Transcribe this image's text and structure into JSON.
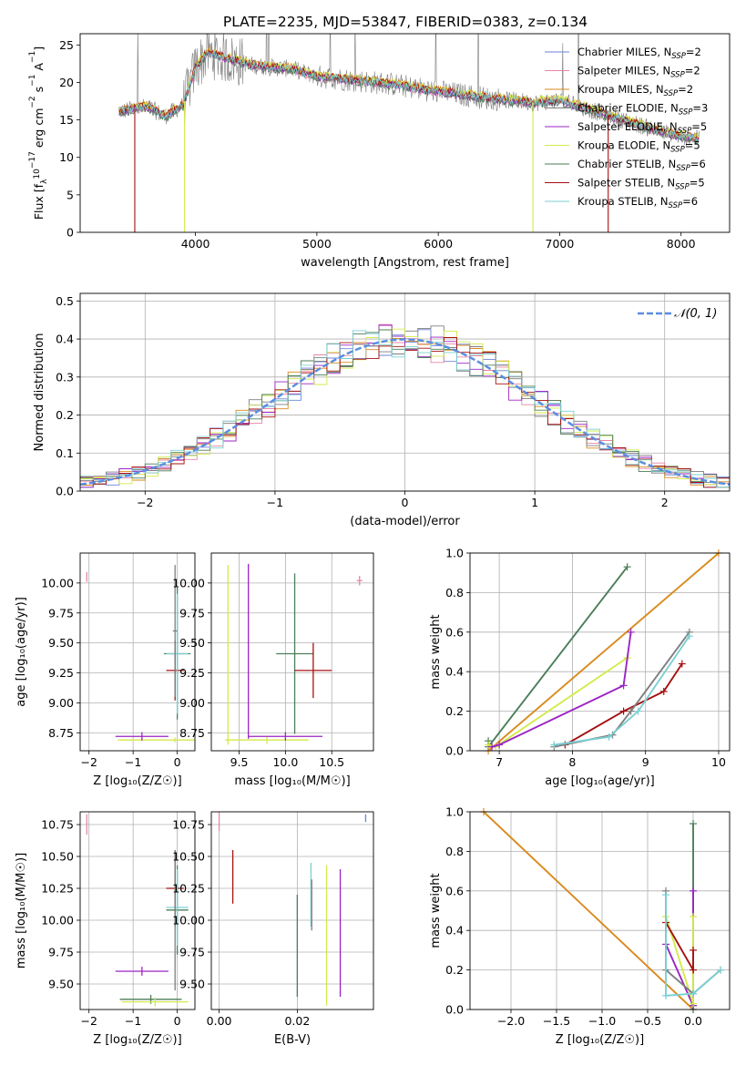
{
  "figure": {
    "title": "PLATE=2235, MJD=53847, FIBERID=0383, z=0.134"
  },
  "colors": {
    "chabrier_miles": "#6a84d8",
    "salpeter_miles": "#e886a6",
    "kroupa_miles": "#d98a1e",
    "chabrier_elodie": "#7e7e7e",
    "salpeter_elodie": "#9b25c4",
    "kroupa_elodie": "#d4ea4a",
    "chabrier_stelib": "#4b7e5a",
    "salpeter_stelib": "#a51010",
    "kroupa_stelib": "#7ccfd2",
    "orange": "#d97a30",
    "normal": "#5b8ee0"
  },
  "chart_data": [
    {
      "id": "spectrum",
      "type": "line",
      "xlabel": "wavelength [Angstrom, rest frame]",
      "ylabel": "Flux [f_λ10^-17 erg cm^-2 s^-1 A^-1]",
      "xlim": [
        3050,
        8400
      ],
      "ylim": [
        0,
        26.5
      ],
      "xticks": [
        "4000",
        "5000",
        "6000",
        "7000",
        "8000"
      ],
      "yticks": [
        "0",
        "5",
        "10",
        "15",
        "20",
        "25"
      ],
      "grid": false,
      "legend_position": "right",
      "legend": [
        {
          "label": "Chabrier MILES, N",
          "sub": "SSP",
          "eq": "=2"
        },
        {
          "label": "Salpeter MILES, N",
          "sub": "SSP",
          "eq": "=2"
        },
        {
          "label": "Kroupa MILES, N",
          "sub": "SSP",
          "eq": "=2"
        },
        {
          "label": "Chabrier ELODIE, N",
          "sub": "SSP",
          "eq": "=3"
        },
        {
          "label": "Salpeter ELODIE, N",
          "sub": "SSP",
          "eq": "=5"
        },
        {
          "label": "Kroupa ELODIE, N",
          "sub": "SSP",
          "eq": "=5"
        },
        {
          "label": "Chabrier STELIB, N",
          "sub": "SSP",
          "eq": "=6"
        },
        {
          "label": "Salpeter STELIB, N",
          "sub": "SSP",
          "eq": "=5"
        },
        {
          "label": "Kroupa STELIB, N",
          "sub": "SSP",
          "eq": "=6"
        }
      ],
      "continuum_model": {
        "x": [
          3400,
          3600,
          3750,
          3900,
          4000,
          4100,
          4300,
          4500,
          4800,
          5000,
          5300,
          5600,
          6000,
          6400,
          6800,
          7000,
          7200,
          7500,
          7800,
          8000,
          8200
        ],
        "y": [
          16.2,
          16.8,
          15.5,
          17.0,
          22.0,
          24.0,
          23.0,
          22.2,
          21.8,
          20.8,
          20.3,
          19.8,
          18.8,
          17.9,
          17.3,
          17.6,
          16.6,
          15.1,
          13.6,
          12.8,
          12.4
        ]
      }
    },
    {
      "id": "residuals",
      "type": "line",
      "xlabel": "(data-model)/error",
      "ylabel": "Normed distribution",
      "xlim": [
        -2.5,
        2.5
      ],
      "ylim": [
        0,
        0.52
      ],
      "xticks": [
        "−2",
        "−1",
        "0",
        "1",
        "2"
      ],
      "yticks": [
        "0.0",
        "0.1",
        "0.2",
        "0.3",
        "0.4",
        "0.5"
      ],
      "grid": true,
      "legend_position": "top-right",
      "legend": [
        "𝒩(0, 1)"
      ],
      "bin_width": 0.1
    },
    {
      "id": "age_vs_Z",
      "type": "scatter",
      "xlabel": "Z [log₁₀(Z/Z☉)]",
      "ylabel": "age [log₁₀(age/yr)]",
      "xlim": [
        -2.2,
        0.4
      ],
      "ylim": [
        8.6,
        10.25
      ],
      "xticks": [
        "−2",
        "−1",
        "0"
      ],
      "yticks": [
        "8.75",
        "9.00",
        "9.25",
        "9.50",
        "9.75",
        "10.00"
      ],
      "grid": true,
      "errorbars": [
        {
          "series": "salpeter_miles",
          "x": -2.05,
          "xerr": 0.0,
          "y": 10.05,
          "yerr": 0.04
        },
        {
          "series": "salpeter_stelib",
          "x": -0.05,
          "xerr": 0.2,
          "y": 9.27,
          "yerr": 0.25
        },
        {
          "series": "chabrier_stelib",
          "x": 0.0,
          "xerr": 0.3,
          "y": 9.41,
          "yerr": 0.55
        },
        {
          "series": "kroupa_stelib",
          "x": 0.0,
          "xerr": 0.25,
          "y": 9.41,
          "yerr": 0.5
        },
        {
          "series": "kroupa_elodie",
          "x": -0.05,
          "xerr": 1.3,
          "y": 8.69,
          "yerr": 0.02
        },
        {
          "series": "salpeter_elodie",
          "x": -0.8,
          "xerr": 0.6,
          "y": 8.72,
          "yerr": 0.0
        },
        {
          "series": "chabrier_elodie",
          "x": -0.05,
          "xerr": 0.05,
          "y": 9.6,
          "yerr": 0.55
        }
      ]
    },
    {
      "id": "age_vs_mass",
      "type": "scatter",
      "xlabel": "mass [log₁₀(M/M☉)]",
      "ylabel": "",
      "xlim": [
        9.2,
        10.95
      ],
      "ylim": [
        8.6,
        10.25
      ],
      "xticks": [
        "9.5",
        "10.0",
        "10.5"
      ],
      "yticks": [
        "8.75",
        "9.00",
        "9.25",
        "9.50",
        "9.75",
        "10.00"
      ],
      "grid": true,
      "errorbars": [
        {
          "series": "salpeter_miles",
          "x": 10.8,
          "xerr": 0.03,
          "y": 10.02,
          "yerr": 0.04
        },
        {
          "series": "kroupa_elodie",
          "x": 9.38,
          "xerr": 0.0,
          "y": 9.4,
          "yerr": 0.75
        },
        {
          "series": "salpeter_elodie",
          "x": 9.6,
          "xerr": 0.0,
          "y": 9.43,
          "yerr": 0.73
        },
        {
          "series": "kroupa_elodie",
          "x": 9.8,
          "xerr": 0.45,
          "y": 8.69,
          "yerr": 0.0
        },
        {
          "series": "salpeter_elodie",
          "x": 10.0,
          "xerr": 0.4,
          "y": 8.72,
          "yerr": 0.0
        },
        {
          "series": "chabrier_stelib",
          "x": 10.1,
          "xerr": 0.2,
          "y": 9.41,
          "yerr": 0.67
        },
        {
          "series": "salpeter_stelib",
          "x": 10.3,
          "xerr": 0.2,
          "y": 9.27,
          "yerr": 0.23
        }
      ]
    },
    {
      "id": "massweight_vs_age",
      "type": "line",
      "xlabel": "age [log₁₀(age/yr)]",
      "ylabel": "mass weight",
      "xlim": [
        6.6,
        10.15
      ],
      "ylim": [
        0,
        1.0
      ],
      "xticks": [
        "7",
        "8",
        "9",
        "10"
      ],
      "yticks": [
        "0.0",
        "0.2",
        "0.4",
        "0.6",
        "0.8",
        "1.0"
      ],
      "grid": true,
      "series": [
        {
          "name": "chabrier_stelib",
          "x": [
            6.85,
            6.85,
            8.75
          ],
          "y": [
            0.05,
            0.02,
            0.93
          ]
        },
        {
          "name": "kroupa_miles",
          "x": [
            6.85,
            10.0
          ],
          "y": [
            0.0,
            1.0
          ]
        },
        {
          "name": "kroupa_elodie",
          "x": [
            6.85,
            6.95,
            8.75,
            8.75
          ],
          "y": [
            0.03,
            0.02,
            0.47,
            0.47
          ]
        },
        {
          "name": "salpeter_elodie",
          "x": [
            6.9,
            7.0,
            8.7,
            8.8
          ],
          "y": [
            0.02,
            0.03,
            0.33,
            0.6
          ]
        },
        {
          "name": "salpeter_stelib",
          "x": [
            7.9,
            8.7,
            9.25,
            9.5
          ],
          "y": [
            0.03,
            0.2,
            0.3,
            0.44
          ]
        },
        {
          "name": "chabrier_elodie",
          "x": [
            7.75,
            8.55,
            8.8,
            9.6
          ],
          "y": [
            0.02,
            0.08,
            0.2,
            0.6
          ]
        },
        {
          "name": "kroupa_stelib",
          "x": [
            7.75,
            8.5,
            8.9,
            9.6
          ],
          "y": [
            0.03,
            0.07,
            0.2,
            0.58
          ]
        }
      ]
    },
    {
      "id": "mass_vs_Z",
      "type": "scatter",
      "xlabel": "Z [log₁₀(Z/Z☉)]",
      "ylabel": "mass [log₁₀(M/M☉)]",
      "xlim": [
        -2.2,
        0.4
      ],
      "ylim": [
        9.3,
        10.85
      ],
      "xticks": [
        "−2",
        "−1",
        "0"
      ],
      "yticks": [
        "9.50",
        "9.75",
        "10.00",
        "10.25",
        "10.50",
        "10.75"
      ],
      "grid": true,
      "errorbars": [
        {
          "series": "salpeter_miles",
          "x": -2.05,
          "xerr": 0.0,
          "y": 10.75,
          "yerr": 0.08
        },
        {
          "series": "salpeter_stelib",
          "x": -0.05,
          "xerr": 0.2,
          "y": 10.25,
          "yerr": 0.3
        },
        {
          "series": "chabrier_stelib",
          "x": 0.0,
          "xerr": 0.25,
          "y": 10.08,
          "yerr": 0.35
        },
        {
          "series": "kroupa_stelib",
          "x": 0.0,
          "xerr": 0.25,
          "y": 10.1,
          "yerr": 0.3
        },
        {
          "series": "salpeter_elodie",
          "x": -0.8,
          "xerr": 0.6,
          "y": 9.6,
          "yerr": 0.0
        },
        {
          "series": "chabrier_stelib",
          "x": -0.6,
          "xerr": 0.7,
          "y": 9.38,
          "yerr": 0.0
        },
        {
          "series": "kroupa_elodie",
          "x": -0.5,
          "xerr": 0.75,
          "y": 9.36,
          "yerr": 0.0
        },
        {
          "series": "chabrier_elodie",
          "x": -0.05,
          "xerr": 0.0,
          "y": 10.0,
          "yerr": 0.55
        }
      ]
    },
    {
      "id": "mass_vs_ebv",
      "type": "scatter",
      "xlabel": "E(B-V)",
      "ylabel": "",
      "xlim": [
        -0.002,
        0.0395
      ],
      "ylim": [
        9.3,
        10.85
      ],
      "xticks": [
        "0.00",
        "0.02"
      ],
      "yticks": [
        "9.50",
        "9.75",
        "10.00",
        "10.25",
        "10.50",
        "10.75"
      ],
      "grid": true,
      "errorbars": [
        {
          "series": "salpeter_miles",
          "x": 0.0,
          "xerr": 0.0,
          "y": 10.78,
          "yerr": 0.08
        },
        {
          "series": "chabrier_miles",
          "x": 0.0375,
          "xerr": 0.0,
          "y": 10.8,
          "yerr": 0.03
        },
        {
          "series": "salpeter_stelib",
          "x": 0.0035,
          "xerr": 0.0,
          "y": 10.34,
          "yerr": 0.21
        },
        {
          "series": "chabrier_stelib",
          "x": 0.02,
          "xerr": 0.0,
          "y": 9.8,
          "yerr": 0.4
        },
        {
          "series": "kroupa_stelib",
          "x": 0.0235,
          "xerr": 0.0,
          "y": 10.2,
          "yerr": 0.25
        },
        {
          "series": "chabrier_elodie",
          "x": 0.0237,
          "xerr": 0.0,
          "y": 10.12,
          "yerr": 0.2
        },
        {
          "series": "kroupa_elodie",
          "x": 0.0275,
          "xerr": 0.0,
          "y": 9.88,
          "yerr": 0.55
        },
        {
          "series": "salpeter_elodie",
          "x": 0.031,
          "xerr": 0.0,
          "y": 9.9,
          "yerr": 0.5
        }
      ]
    },
    {
      "id": "massweight_vs_Z",
      "type": "line",
      "xlabel": "Z [log₁₀(Z/Z☉)]",
      "ylabel": "mass weight",
      "xlim": [
        -2.45,
        0.4
      ],
      "ylim": [
        0,
        1.0
      ],
      "xticks": [
        "−2.0",
        "−1.5",
        "−1.0",
        "−0.5",
        "0.0"
      ],
      "yticks": [
        "0.0",
        "0.2",
        "0.4",
        "0.6",
        "0.8",
        "1.0"
      ],
      "grid": true,
      "series": [
        {
          "name": "kroupa_miles",
          "x": [
            -2.3,
            0.0
          ],
          "y": [
            1.0,
            0.0
          ]
        },
        {
          "name": "chabrier_stelib",
          "x": [
            0.0,
            0.0,
            0.0
          ],
          "y": [
            0.0,
            0.02,
            0.94
          ]
        },
        {
          "name": "salpeter_elodie",
          "x": [
            -0.3,
            0.0,
            0.0
          ],
          "y": [
            0.33,
            0.02,
            0.6
          ]
        },
        {
          "name": "kroupa_elodie",
          "x": [
            -0.3,
            0.0,
            0.0
          ],
          "y": [
            0.47,
            0.03,
            0.47
          ]
        },
        {
          "name": "salpeter_stelib",
          "x": [
            -0.3,
            0.0,
            0.0
          ],
          "y": [
            0.44,
            0.2,
            0.3
          ]
        },
        {
          "name": "chabrier_elodie",
          "x": [
            -0.3,
            -0.3,
            0.0,
            0.3
          ],
          "y": [
            0.6,
            0.2,
            0.08,
            0.2
          ]
        },
        {
          "name": "kroupa_stelib",
          "x": [
            -0.3,
            -0.3,
            0.0,
            0.3
          ],
          "y": [
            0.58,
            0.07,
            0.08,
            0.2
          ]
        }
      ]
    }
  ]
}
